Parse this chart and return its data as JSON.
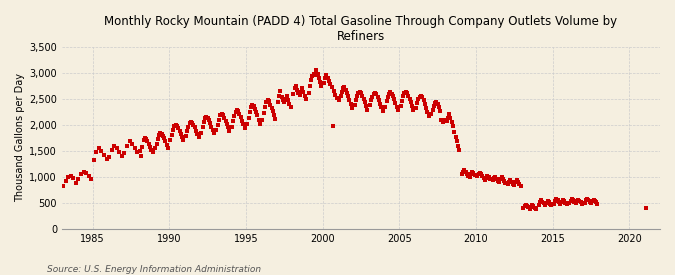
{
  "title": "Monthly Rocky Mountain (PADD 4) Total Gasoline Through Company Outlets Volume by\nRefiners",
  "ylabel": "Thousand Gallons per Day",
  "source": "Source: U.S. Energy Information Administration",
  "background_color": "#f5efe0",
  "dot_color": "#cc0000",
  "xlim": [
    1983.0,
    2022.0
  ],
  "ylim": [
    0,
    3500
  ],
  "yticks": [
    0,
    500,
    1000,
    1500,
    2000,
    2500,
    3000,
    3500
  ],
  "xticks": [
    1985,
    1990,
    1995,
    2000,
    2005,
    2010,
    2015,
    2020
  ],
  "grid_color": "#cccccc",
  "data": [
    [
      1983.08,
      830
    ],
    [
      1983.25,
      920
    ],
    [
      1983.42,
      990
    ],
    [
      1983.58,
      1020
    ],
    [
      1983.75,
      980
    ],
    [
      1983.92,
      870
    ],
    [
      1984.08,
      950
    ],
    [
      1984.25,
      1050
    ],
    [
      1984.42,
      1100
    ],
    [
      1984.58,
      1080
    ],
    [
      1984.75,
      1020
    ],
    [
      1984.92,
      960
    ],
    [
      1985.08,
      1320
    ],
    [
      1985.25,
      1480
    ],
    [
      1985.42,
      1550
    ],
    [
      1985.58,
      1500
    ],
    [
      1985.75,
      1420
    ],
    [
      1985.92,
      1340
    ],
    [
      1986.08,
      1380
    ],
    [
      1986.25,
      1520
    ],
    [
      1986.42,
      1600
    ],
    [
      1986.58,
      1560
    ],
    [
      1986.75,
      1480
    ],
    [
      1986.92,
      1400
    ],
    [
      1987.08,
      1450
    ],
    [
      1987.25,
      1600
    ],
    [
      1987.42,
      1680
    ],
    [
      1987.58,
      1640
    ],
    [
      1987.75,
      1560
    ],
    [
      1987.92,
      1480
    ],
    [
      1988.08,
      1500
    ],
    [
      1988.17,
      1400
    ],
    [
      1988.25,
      1580
    ],
    [
      1988.33,
      1700
    ],
    [
      1988.42,
      1750
    ],
    [
      1988.5,
      1720
    ],
    [
      1988.58,
      1680
    ],
    [
      1988.67,
      1640
    ],
    [
      1988.75,
      1580
    ],
    [
      1988.83,
      1520
    ],
    [
      1988.92,
      1480
    ],
    [
      1989.08,
      1560
    ],
    [
      1989.17,
      1640
    ],
    [
      1989.25,
      1720
    ],
    [
      1989.33,
      1800
    ],
    [
      1989.42,
      1840
    ],
    [
      1989.5,
      1820
    ],
    [
      1989.58,
      1780
    ],
    [
      1989.67,
      1740
    ],
    [
      1989.75,
      1680
    ],
    [
      1989.83,
      1620
    ],
    [
      1989.92,
      1560
    ],
    [
      1990.08,
      1700
    ],
    [
      1990.17,
      1800
    ],
    [
      1990.25,
      1900
    ],
    [
      1990.33,
      1970
    ],
    [
      1990.42,
      2000
    ],
    [
      1990.5,
      1980
    ],
    [
      1990.58,
      1940
    ],
    [
      1990.67,
      1880
    ],
    [
      1990.75,
      1820
    ],
    [
      1990.83,
      1760
    ],
    [
      1990.92,
      1700
    ],
    [
      1991.08,
      1780
    ],
    [
      1991.17,
      1880
    ],
    [
      1991.25,
      1960
    ],
    [
      1991.33,
      2030
    ],
    [
      1991.42,
      2060
    ],
    [
      1991.5,
      2040
    ],
    [
      1991.58,
      2000
    ],
    [
      1991.67,
      1950
    ],
    [
      1991.75,
      1880
    ],
    [
      1991.83,
      1820
    ],
    [
      1991.92,
      1760
    ],
    [
      1992.08,
      1840
    ],
    [
      1992.17,
      1950
    ],
    [
      1992.25,
      2050
    ],
    [
      1992.33,
      2130
    ],
    [
      1992.42,
      2160
    ],
    [
      1992.5,
      2140
    ],
    [
      1992.58,
      2090
    ],
    [
      1992.67,
      2030
    ],
    [
      1992.75,
      1960
    ],
    [
      1992.83,
      1900
    ],
    [
      1992.92,
      1840
    ],
    [
      1993.08,
      1900
    ],
    [
      1993.17,
      2000
    ],
    [
      1993.25,
      2100
    ],
    [
      1993.33,
      2180
    ],
    [
      1993.42,
      2210
    ],
    [
      1993.5,
      2190
    ],
    [
      1993.58,
      2140
    ],
    [
      1993.67,
      2080
    ],
    [
      1993.75,
      2010
    ],
    [
      1993.83,
      1950
    ],
    [
      1993.92,
      1880
    ],
    [
      1994.08,
      1960
    ],
    [
      1994.17,
      2070
    ],
    [
      1994.25,
      2170
    ],
    [
      1994.33,
      2250
    ],
    [
      1994.42,
      2280
    ],
    [
      1994.5,
      2260
    ],
    [
      1994.58,
      2210
    ],
    [
      1994.67,
      2150
    ],
    [
      1994.75,
      2080
    ],
    [
      1994.83,
      2010
    ],
    [
      1994.92,
      1940
    ],
    [
      1995.08,
      2020
    ],
    [
      1995.17,
      2140
    ],
    [
      1995.25,
      2250
    ],
    [
      1995.33,
      2340
    ],
    [
      1995.42,
      2380
    ],
    [
      1995.5,
      2360
    ],
    [
      1995.58,
      2310
    ],
    [
      1995.67,
      2250
    ],
    [
      1995.75,
      2180
    ],
    [
      1995.83,
      2100
    ],
    [
      1995.92,
      2020
    ],
    [
      1996.08,
      2100
    ],
    [
      1996.17,
      2220
    ],
    [
      1996.25,
      2340
    ],
    [
      1996.33,
      2430
    ],
    [
      1996.42,
      2470
    ],
    [
      1996.5,
      2450
    ],
    [
      1996.58,
      2390
    ],
    [
      1996.67,
      2330
    ],
    [
      1996.75,
      2260
    ],
    [
      1996.83,
      2190
    ],
    [
      1996.92,
      2110
    ],
    [
      1997.08,
      2440
    ],
    [
      1997.17,
      2560
    ],
    [
      1997.25,
      2650
    ],
    [
      1997.33,
      2540
    ],
    [
      1997.42,
      2480
    ],
    [
      1997.5,
      2430
    ],
    [
      1997.58,
      2500
    ],
    [
      1997.67,
      2560
    ],
    [
      1997.75,
      2480
    ],
    [
      1997.83,
      2400
    ],
    [
      1997.92,
      2350
    ],
    [
      1998.08,
      2600
    ],
    [
      1998.17,
      2700
    ],
    [
      1998.25,
      2750
    ],
    [
      1998.33,
      2680
    ],
    [
      1998.42,
      2620
    ],
    [
      1998.5,
      2580
    ],
    [
      1998.58,
      2640
    ],
    [
      1998.67,
      2700
    ],
    [
      1998.75,
      2640
    ],
    [
      1998.83,
      2560
    ],
    [
      1998.92,
      2500
    ],
    [
      1999.08,
      2620
    ],
    [
      1999.17,
      2750
    ],
    [
      1999.25,
      2860
    ],
    [
      1999.33,
      2940
    ],
    [
      1999.42,
      2980
    ],
    [
      1999.5,
      2950
    ],
    [
      1999.58,
      3050
    ],
    [
      1999.67,
      2980
    ],
    [
      1999.75,
      2900
    ],
    [
      1999.83,
      2820
    ],
    [
      1999.92,
      2750
    ],
    [
      2000.08,
      2800
    ],
    [
      2000.17,
      2900
    ],
    [
      2000.25,
      2960
    ],
    [
      2000.33,
      2900
    ],
    [
      2000.42,
      2840
    ],
    [
      2000.5,
      2780
    ],
    [
      2000.58,
      2720
    ],
    [
      2000.67,
      1980
    ],
    [
      2000.75,
      2650
    ],
    [
      2000.83,
      2580
    ],
    [
      2000.92,
      2520
    ],
    [
      2001.08,
      2480
    ],
    [
      2001.17,
      2560
    ],
    [
      2001.25,
      2640
    ],
    [
      2001.33,
      2700
    ],
    [
      2001.42,
      2720
    ],
    [
      2001.5,
      2680
    ],
    [
      2001.58,
      2620
    ],
    [
      2001.67,
      2550
    ],
    [
      2001.75,
      2480
    ],
    [
      2001.83,
      2400
    ],
    [
      2001.92,
      2330
    ],
    [
      2002.08,
      2380
    ],
    [
      2002.17,
      2470
    ],
    [
      2002.25,
      2550
    ],
    [
      2002.33,
      2610
    ],
    [
      2002.42,
      2640
    ],
    [
      2002.5,
      2610
    ],
    [
      2002.58,
      2560
    ],
    [
      2002.67,
      2500
    ],
    [
      2002.75,
      2430
    ],
    [
      2002.83,
      2360
    ],
    [
      2002.92,
      2290
    ],
    [
      2003.08,
      2380
    ],
    [
      2003.17,
      2470
    ],
    [
      2003.25,
      2540
    ],
    [
      2003.33,
      2590
    ],
    [
      2003.42,
      2620
    ],
    [
      2003.5,
      2590
    ],
    [
      2003.58,
      2540
    ],
    [
      2003.67,
      2480
    ],
    [
      2003.75,
      2410
    ],
    [
      2003.83,
      2340
    ],
    [
      2003.92,
      2270
    ],
    [
      2004.08,
      2350
    ],
    [
      2004.17,
      2450
    ],
    [
      2004.25,
      2540
    ],
    [
      2004.33,
      2600
    ],
    [
      2004.42,
      2630
    ],
    [
      2004.5,
      2600
    ],
    [
      2004.58,
      2550
    ],
    [
      2004.67,
      2490
    ],
    [
      2004.75,
      2420
    ],
    [
      2004.83,
      2350
    ],
    [
      2004.92,
      2280
    ],
    [
      2005.08,
      2360
    ],
    [
      2005.17,
      2460
    ],
    [
      2005.25,
      2550
    ],
    [
      2005.33,
      2610
    ],
    [
      2005.42,
      2640
    ],
    [
      2005.5,
      2610
    ],
    [
      2005.58,
      2560
    ],
    [
      2005.67,
      2500
    ],
    [
      2005.75,
      2430
    ],
    [
      2005.83,
      2360
    ],
    [
      2005.92,
      2280
    ],
    [
      2006.08,
      2320
    ],
    [
      2006.17,
      2420
    ],
    [
      2006.25,
      2500
    ],
    [
      2006.33,
      2540
    ],
    [
      2006.42,
      2560
    ],
    [
      2006.5,
      2530
    ],
    [
      2006.58,
      2470
    ],
    [
      2006.67,
      2400
    ],
    [
      2006.75,
      2330
    ],
    [
      2006.83,
      2250
    ],
    [
      2006.92,
      2170
    ],
    [
      2007.08,
      2200
    ],
    [
      2007.17,
      2290
    ],
    [
      2007.25,
      2370
    ],
    [
      2007.33,
      2420
    ],
    [
      2007.42,
      2430
    ],
    [
      2007.5,
      2400
    ],
    [
      2007.58,
      2340
    ],
    [
      2007.67,
      2270
    ],
    [
      2007.75,
      2090
    ],
    [
      2007.83,
      2050
    ],
    [
      2007.92,
      2100
    ],
    [
      2008.08,
      2070
    ],
    [
      2008.17,
      2140
    ],
    [
      2008.25,
      2200
    ],
    [
      2008.33,
      2140
    ],
    [
      2008.42,
      2060
    ],
    [
      2008.5,
      1970
    ],
    [
      2008.58,
      1860
    ],
    [
      2008.67,
      1760
    ],
    [
      2008.75,
      1680
    ],
    [
      2008.83,
      1600
    ],
    [
      2008.92,
      1510
    ],
    [
      2009.08,
      1050
    ],
    [
      2009.17,
      1100
    ],
    [
      2009.25,
      1130
    ],
    [
      2009.33,
      1090
    ],
    [
      2009.42,
      1060
    ],
    [
      2009.5,
      1020
    ],
    [
      2009.58,
      990
    ],
    [
      2009.67,
      1050
    ],
    [
      2009.75,
      1100
    ],
    [
      2009.83,
      1080
    ],
    [
      2009.92,
      1040
    ],
    [
      2010.08,
      1010
    ],
    [
      2010.17,
      1050
    ],
    [
      2010.25,
      1080
    ],
    [
      2010.33,
      1050
    ],
    [
      2010.42,
      1010
    ],
    [
      2010.5,
      970
    ],
    [
      2010.58,
      940
    ],
    [
      2010.67,
      980
    ],
    [
      2010.75,
      1020
    ],
    [
      2010.83,
      1000
    ],
    [
      2010.92,
      960
    ],
    [
      2011.08,
      930
    ],
    [
      2011.17,
      970
    ],
    [
      2011.25,
      1000
    ],
    [
      2011.33,
      960
    ],
    [
      2011.42,
      920
    ],
    [
      2011.5,
      890
    ],
    [
      2011.58,
      950
    ],
    [
      2011.67,
      990
    ],
    [
      2011.75,
      960
    ],
    [
      2011.83,
      920
    ],
    [
      2011.92,
      880
    ],
    [
      2012.08,
      860
    ],
    [
      2012.17,
      900
    ],
    [
      2012.25,
      930
    ],
    [
      2012.33,
      900
    ],
    [
      2012.42,
      860
    ],
    [
      2012.5,
      840
    ],
    [
      2012.58,
      900
    ],
    [
      2012.67,
      940
    ],
    [
      2012.75,
      900
    ],
    [
      2012.83,
      860
    ],
    [
      2012.92,
      820
    ],
    [
      2013.08,
      390
    ],
    [
      2013.17,
      430
    ],
    [
      2013.25,
      460
    ],
    [
      2013.33,
      440
    ],
    [
      2013.42,
      410
    ],
    [
      2013.5,
      380
    ],
    [
      2013.58,
      420
    ],
    [
      2013.67,
      450
    ],
    [
      2013.75,
      430
    ],
    [
      2013.83,
      400
    ],
    [
      2013.92,
      370
    ],
    [
      2014.08,
      460
    ],
    [
      2014.17,
      510
    ],
    [
      2014.25,
      550
    ],
    [
      2014.33,
      520
    ],
    [
      2014.42,
      490
    ],
    [
      2014.5,
      460
    ],
    [
      2014.58,
      500
    ],
    [
      2014.67,
      530
    ],
    [
      2014.75,
      510
    ],
    [
      2014.83,
      480
    ],
    [
      2014.92,
      450
    ],
    [
      2015.08,
      480
    ],
    [
      2015.17,
      530
    ],
    [
      2015.25,
      570
    ],
    [
      2015.33,
      550
    ],
    [
      2015.42,
      510
    ],
    [
      2015.5,
      480
    ],
    [
      2015.58,
      520
    ],
    [
      2015.67,
      560
    ],
    [
      2015.75,
      540
    ],
    [
      2015.83,
      500
    ],
    [
      2015.92,
      470
    ],
    [
      2016.08,
      490
    ],
    [
      2016.17,
      540
    ],
    [
      2016.25,
      580
    ],
    [
      2016.33,
      560
    ],
    [
      2016.42,
      520
    ],
    [
      2016.5,
      490
    ],
    [
      2016.58,
      530
    ],
    [
      2016.67,
      560
    ],
    [
      2016.75,
      540
    ],
    [
      2016.83,
      510
    ],
    [
      2016.92,
      480
    ],
    [
      2017.08,
      500
    ],
    [
      2017.17,
      550
    ],
    [
      2017.25,
      580
    ],
    [
      2017.33,
      560
    ],
    [
      2017.42,
      520
    ],
    [
      2017.5,
      490
    ],
    [
      2017.58,
      530
    ],
    [
      2017.67,
      560
    ],
    [
      2017.75,
      540
    ],
    [
      2017.83,
      510
    ],
    [
      2017.92,
      480
    ],
    [
      2021.08,
      400
    ]
  ]
}
